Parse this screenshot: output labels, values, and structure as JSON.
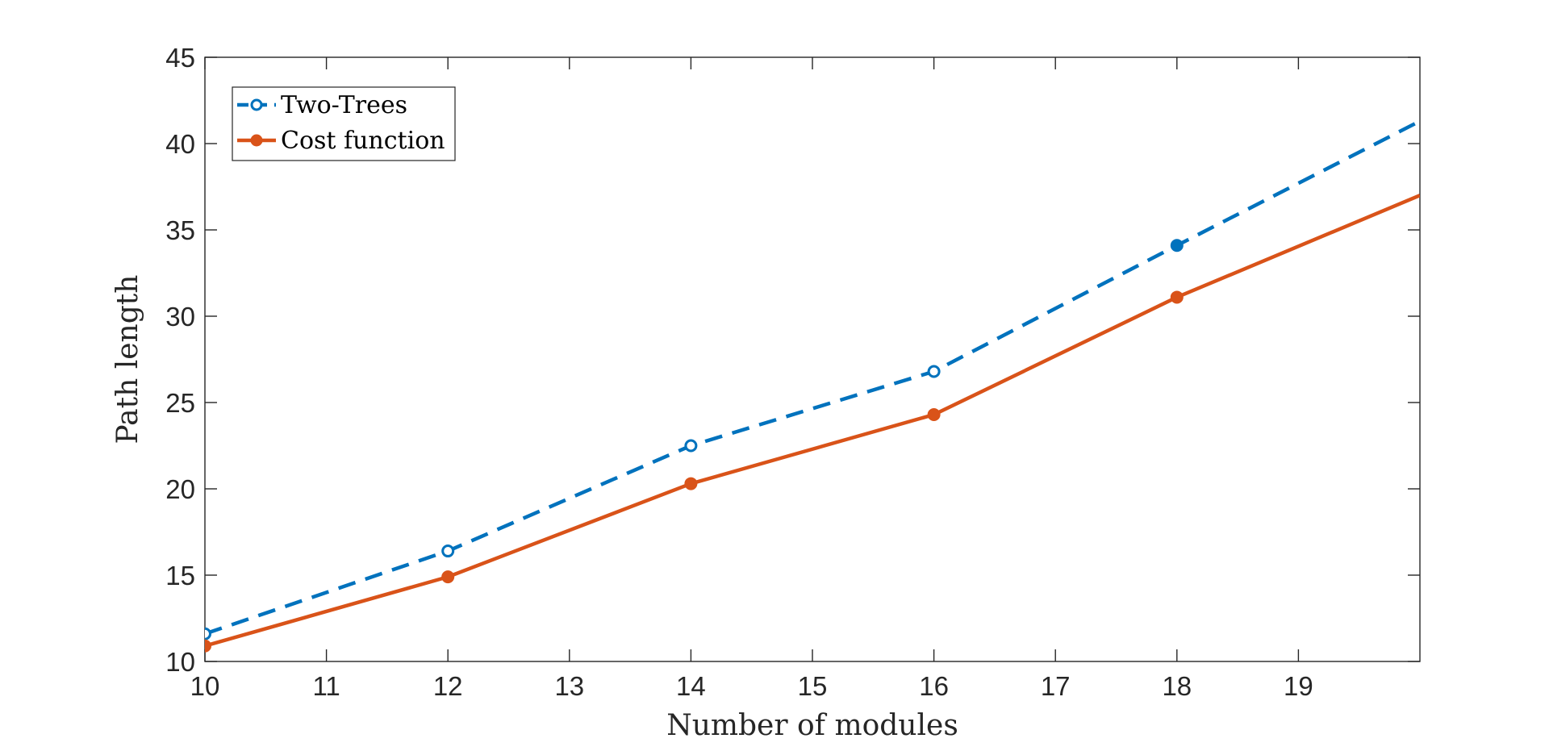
{
  "chart_data": {
    "type": "line",
    "title": "",
    "xlabel": "Number of modules",
    "ylabel": "Path length",
    "xlim": [
      10,
      20
    ],
    "ylim": [
      10,
      45
    ],
    "x_ticks": [
      10,
      11,
      12,
      13,
      14,
      15,
      16,
      17,
      18,
      19
    ],
    "y_ticks": [
      10,
      15,
      20,
      25,
      30,
      35,
      40,
      45
    ],
    "grid": false,
    "box": true,
    "legend_position": "top-left",
    "series": [
      {
        "name": "Two-Trees",
        "color": "#0072BD",
        "line_style": "dashed",
        "marker": "open-circle",
        "x": [
          10,
          12,
          14,
          16,
          18,
          20
        ],
        "y": [
          11.6,
          16.4,
          22.5,
          26.8,
          34.1,
          41.3
        ]
      },
      {
        "name": "Cost function",
        "color": "#D95319",
        "line_style": "solid",
        "marker": "filled-circle",
        "x": [
          10,
          12,
          14,
          16,
          18,
          20
        ],
        "y": [
          10.9,
          14.9,
          20.3,
          24.3,
          31.1,
          37.0
        ]
      }
    ]
  }
}
